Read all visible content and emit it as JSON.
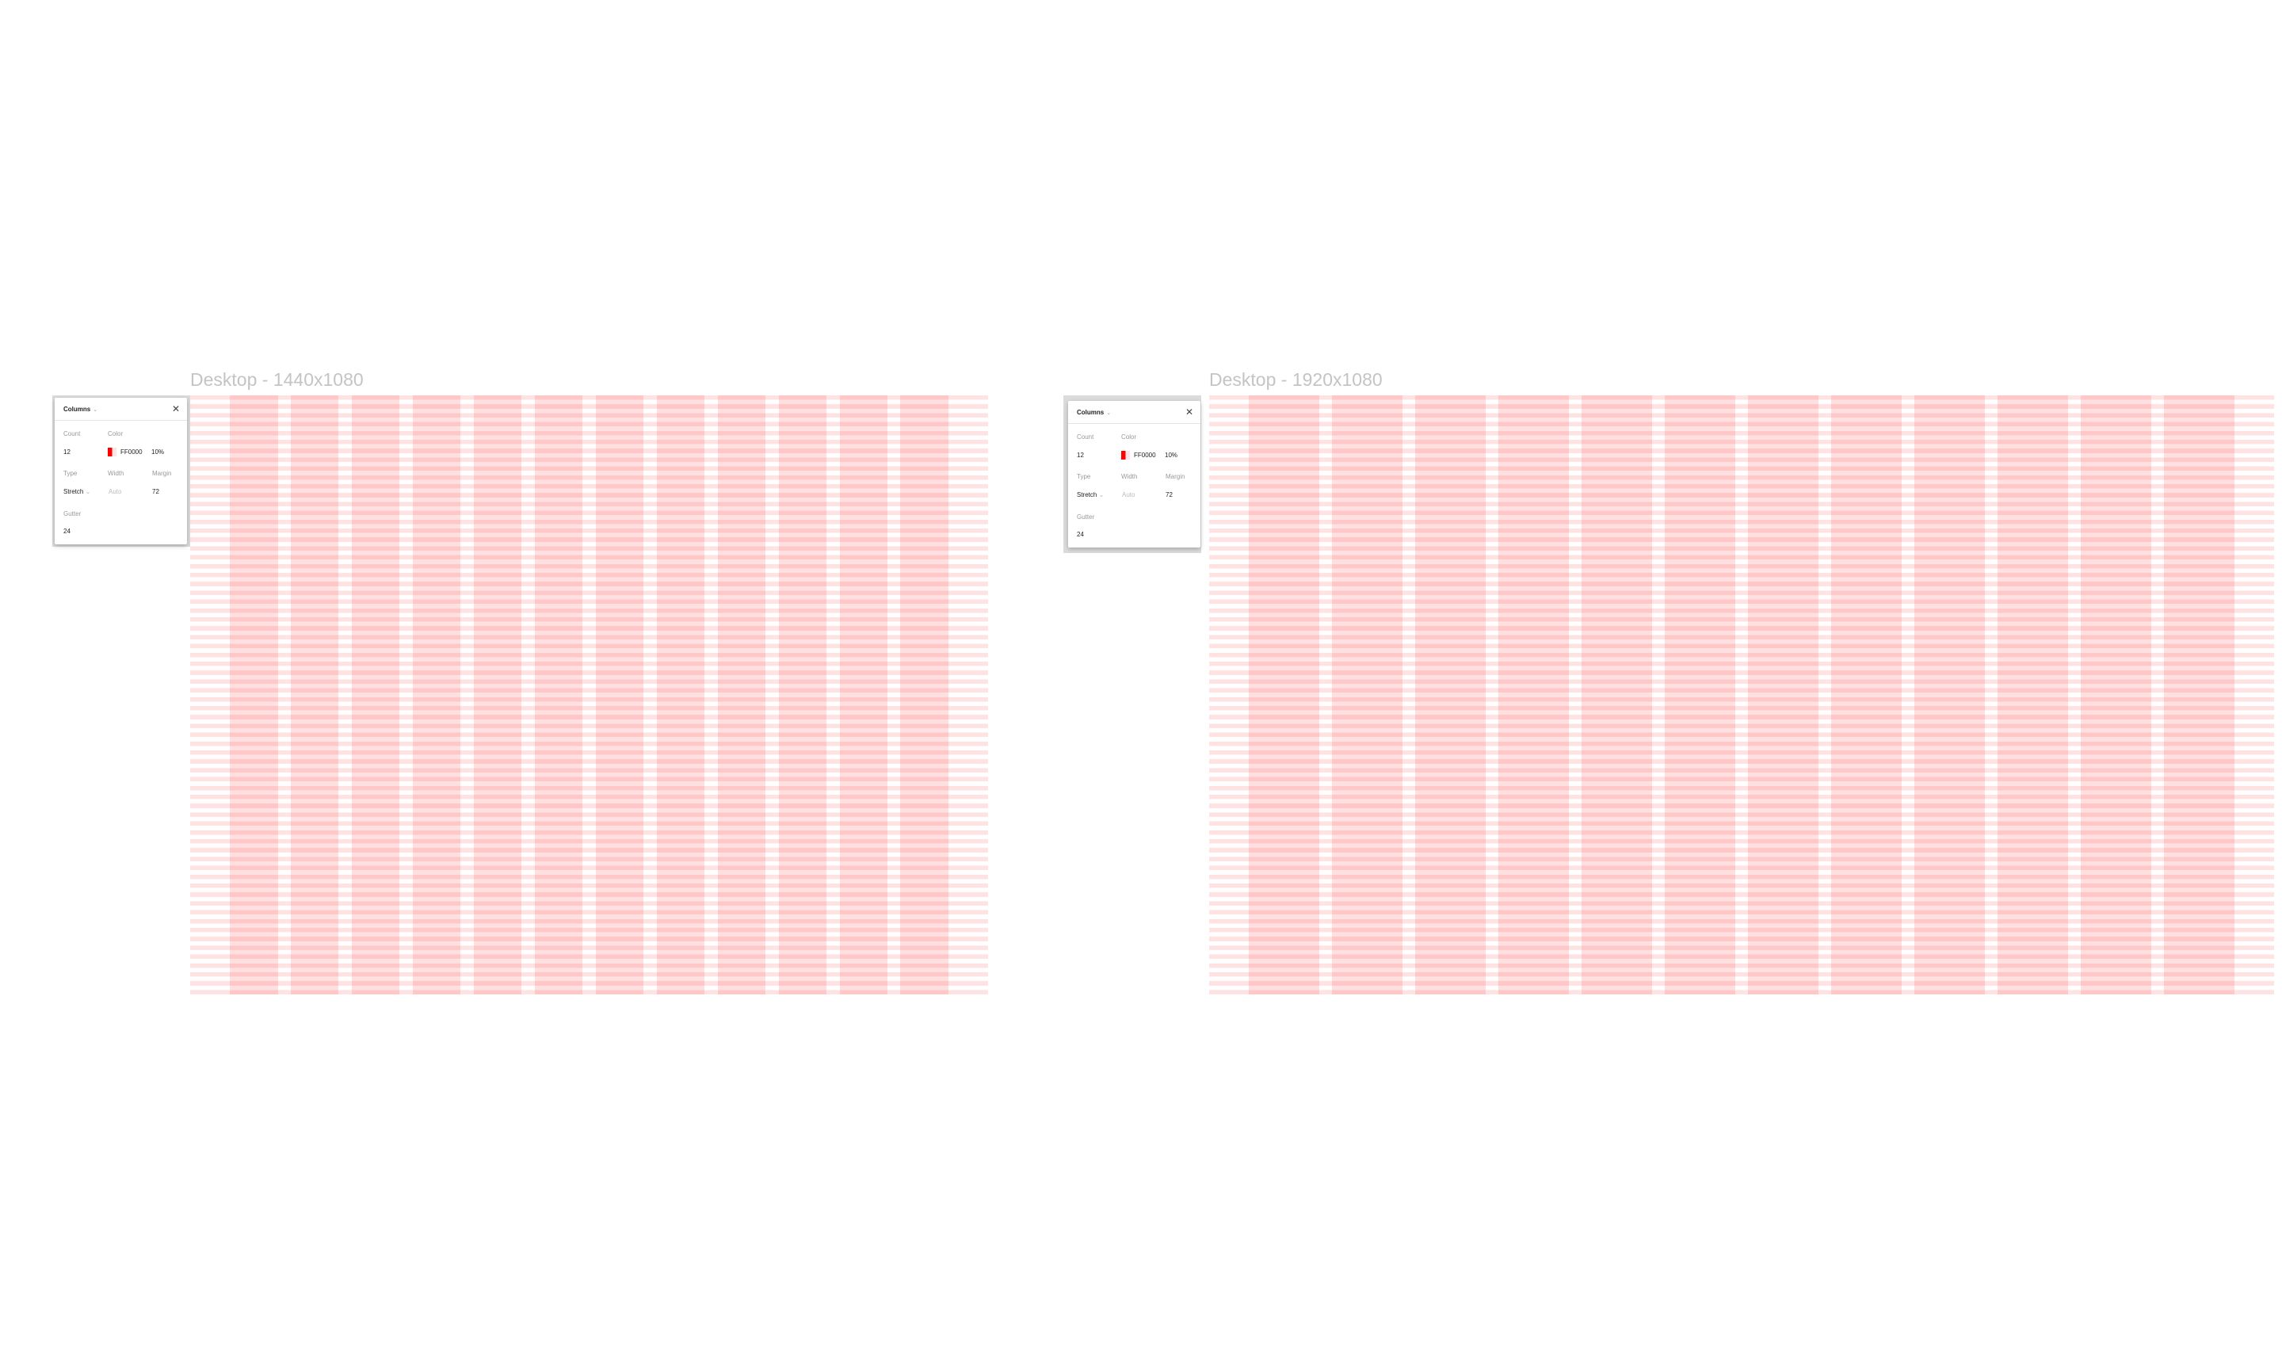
{
  "frames": [
    {
      "title": "Desktop - 1440x1080",
      "panel": {
        "title": "Columns",
        "count_label": "Count",
        "count": "12",
        "color_label": "Color",
        "color_hex": "FF0000",
        "opacity": "10%",
        "type_label": "Type",
        "type": "Stretch",
        "width_label": "Width",
        "width": "Auto",
        "margin_label": "Margin",
        "margin": "72",
        "gutter_label": "Gutter",
        "gutter": "24"
      }
    },
    {
      "title": "Desktop - 1920x1080",
      "panel": {
        "title": "Columns",
        "count_label": "Count",
        "count": "12",
        "color_label": "Color",
        "color_hex": "FF0000",
        "opacity": "10%",
        "type_label": "Type",
        "type": "Stretch",
        "width_label": "Width",
        "width": "Auto",
        "margin_label": "Margin",
        "margin": "72",
        "gutter_label": "Gutter",
        "gutter": "24"
      }
    }
  ],
  "grid_color": "#FF0000"
}
